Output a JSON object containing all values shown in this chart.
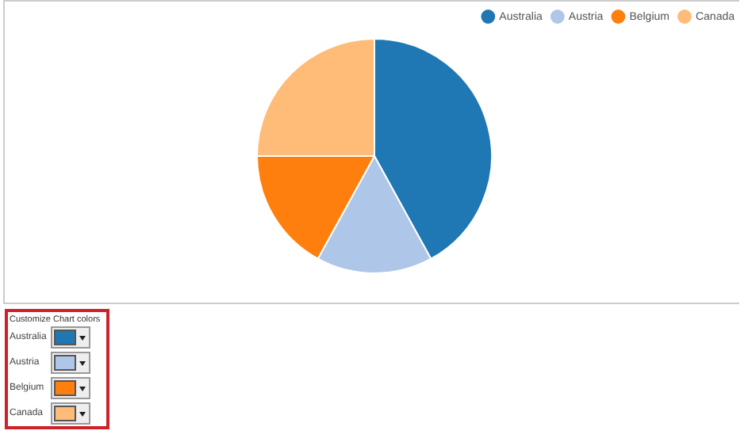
{
  "chart_data": {
    "type": "pie",
    "categories": [
      "Australia",
      "Austria",
      "Belgium",
      "Canada"
    ],
    "values": [
      42,
      16,
      17,
      25
    ],
    "colors": [
      "#1f77b4",
      "#aec7e8",
      "#ff7f0e",
      "#ffbb78"
    ],
    "legend": "top right",
    "annotations": [
      "Customize Chart colors"
    ]
  }
}
